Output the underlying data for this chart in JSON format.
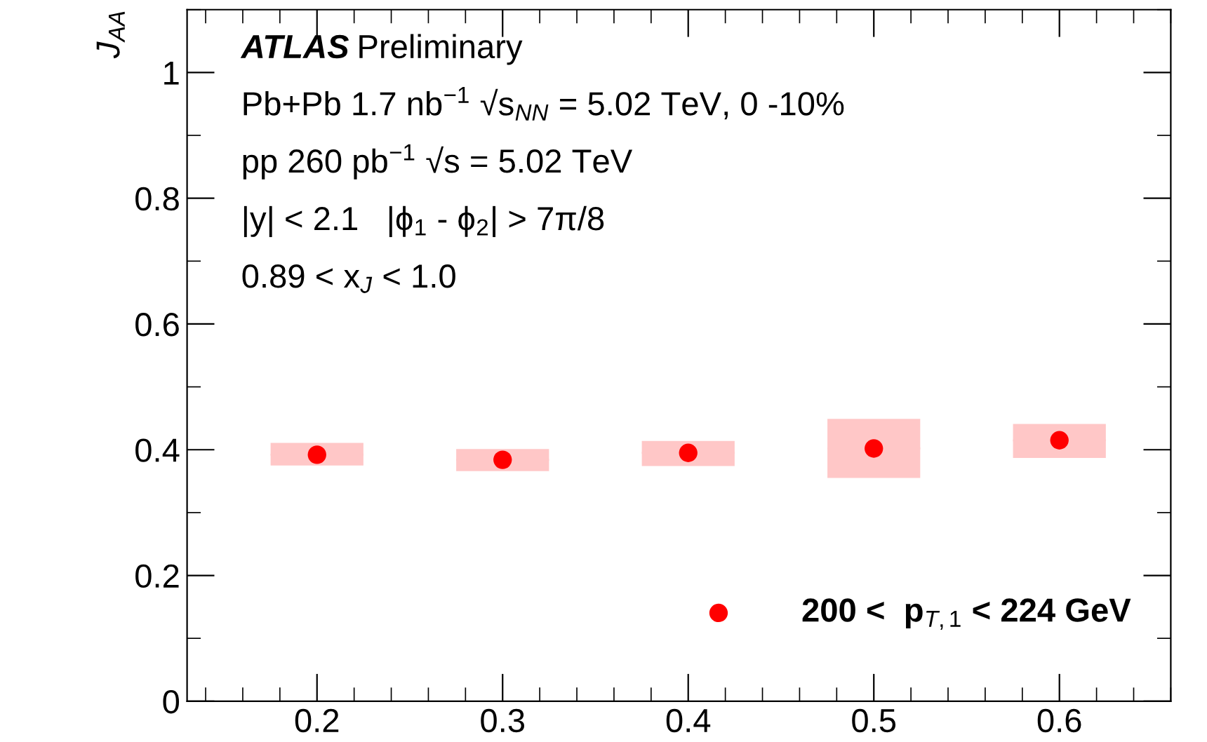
{
  "chart_data": {
    "type": "scatter",
    "ylabel": "J$_{AA}$",
    "annotations": [
      "ATLAS Preliminary",
      "Pb+Pb 1.7 nb$^{−1}$ √s$_{NN}$ = 5.02 TeV, 0 -10%",
      "pp 260 pb$^{−1}$ √s = 5.02 TeV",
      "|y| < 2.1   |ϕ$_{1}$ - ϕ$_{2}$| > 7π/8",
      "0.89 < x$_{J}$ < 1.0"
    ],
    "series": [
      {
        "name": "200 <  p$_{T,1}$ < 224 GeV",
        "color": "#ff0000",
        "x": [
          0.2,
          0.3,
          0.4,
          0.5,
          0.6
        ],
        "values": [
          0.392,
          0.384,
          0.395,
          0.402,
          0.415
        ],
        "errors": [
          [
            0.375,
            0.411
          ],
          [
            0.366,
            0.401
          ],
          [
            0.374,
            0.414
          ],
          [
            0.355,
            0.449
          ],
          [
            0.387,
            0.441
          ]
        ],
        "xerrors": [
          0.025,
          0.025,
          0.025,
          0.025,
          0.025
        ]
      }
    ],
    "marker": "circle",
    "xlim": [
      0.13,
      0.66
    ],
    "xticks": [
      0.2,
      0.3,
      0.4,
      0.5,
      0.6
    ],
    "ylim": [
      0,
      1.1
    ],
    "yticks": [
      0,
      0.2,
      0.4,
      0.6,
      0.8,
      1
    ],
    "grid": false,
    "legend": "bottom right"
  }
}
